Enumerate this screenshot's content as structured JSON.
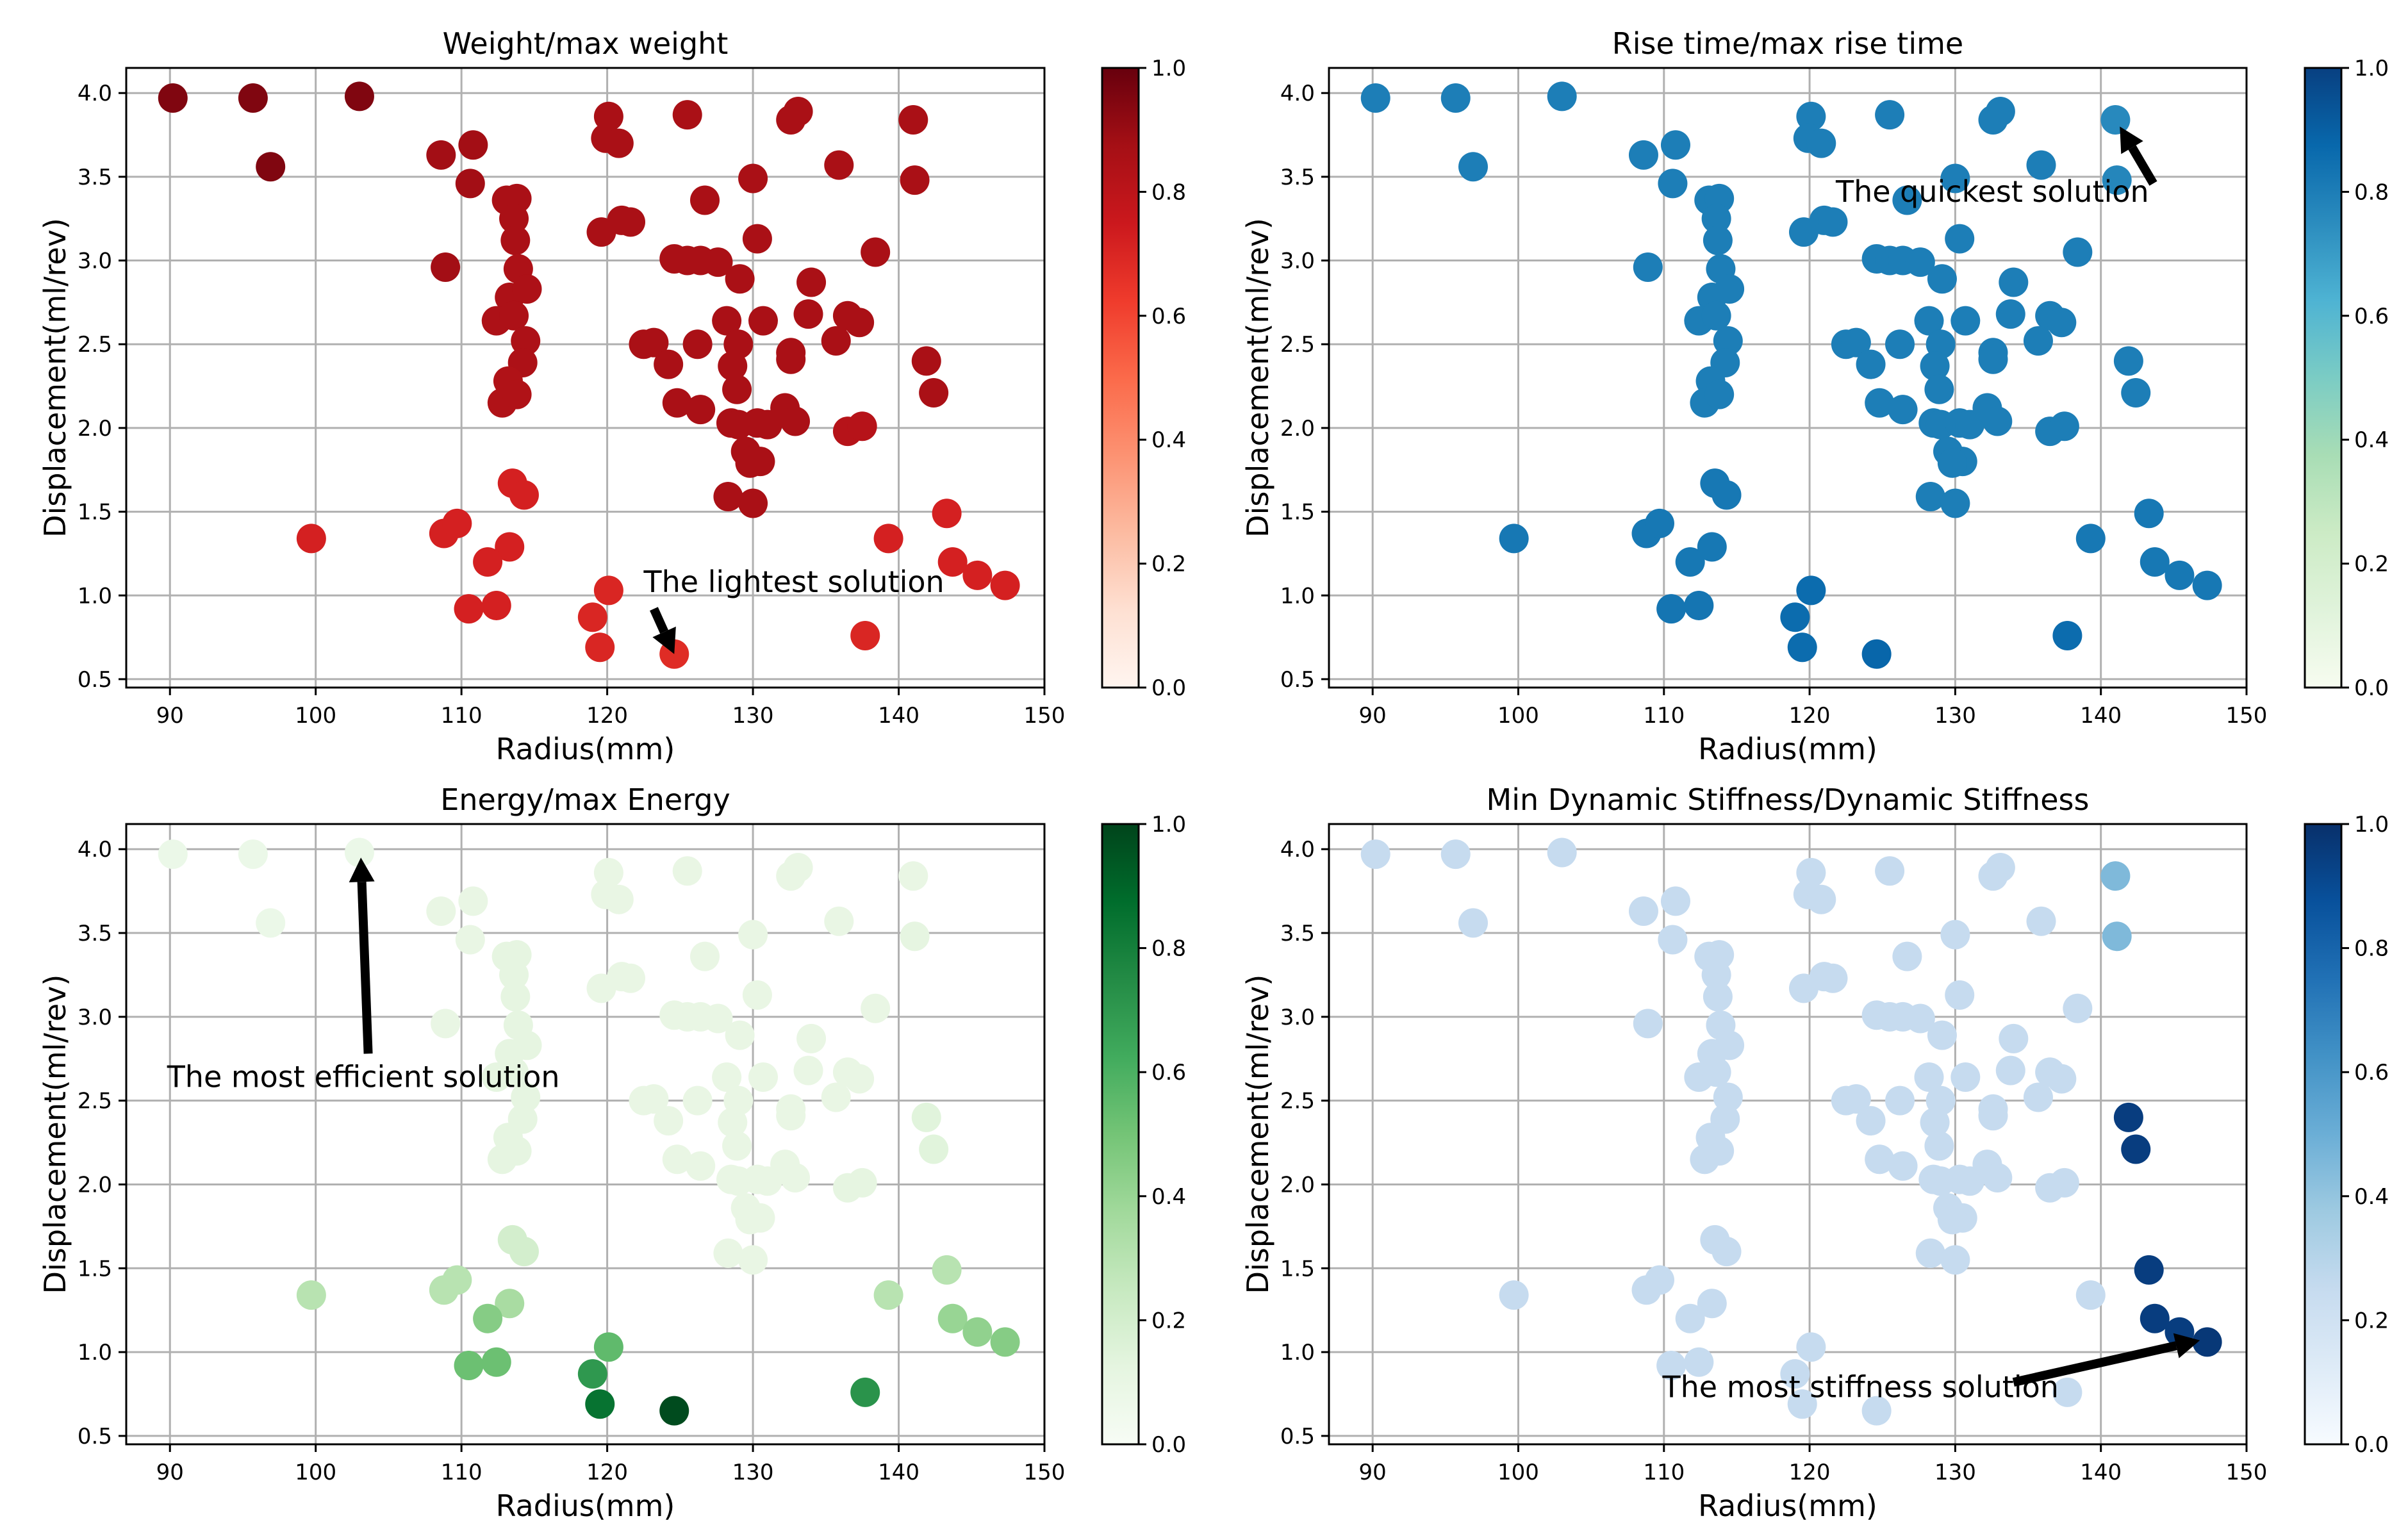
{
  "chart_data": {
    "type": "scatter",
    "shared": {
      "xlabel": "Radius(mm)",
      "ylabel": "Displacement(ml/rev)",
      "xlim": [
        87,
        150
      ],
      "ylim": [
        0.45,
        4.15
      ],
      "xticks": [
        90,
        100,
        110,
        120,
        130,
        140,
        150
      ],
      "yticks": [
        0.5,
        1.0,
        1.5,
        2.0,
        2.5,
        3.0,
        3.5,
        4.0
      ],
      "colorbar_ticks": [
        0.0,
        0.2,
        0.4,
        0.6,
        0.8,
        1.0
      ],
      "grid": true,
      "points": [
        {
          "x": 90.2,
          "y": 3.97
        },
        {
          "x": 95.7,
          "y": 3.97
        },
        {
          "x": 103,
          "y": 3.98
        },
        {
          "x": 96.9,
          "y": 3.56
        },
        {
          "x": 108.6,
          "y": 3.63
        },
        {
          "x": 110.8,
          "y": 3.69
        },
        {
          "x": 110.6,
          "y": 3.46
        },
        {
          "x": 108.9,
          "y": 2.96
        },
        {
          "x": 113.1,
          "y": 3.36
        },
        {
          "x": 113.8,
          "y": 3.37
        },
        {
          "x": 113.6,
          "y": 3.25
        },
        {
          "x": 113.7,
          "y": 3.12
        },
        {
          "x": 113.9,
          "y": 2.95
        },
        {
          "x": 113.3,
          "y": 2.78
        },
        {
          "x": 114.5,
          "y": 2.83
        },
        {
          "x": 112.4,
          "y": 2.64
        },
        {
          "x": 113.6,
          "y": 2.67
        },
        {
          "x": 114.4,
          "y": 2.52
        },
        {
          "x": 114.2,
          "y": 2.39
        },
        {
          "x": 113.2,
          "y": 2.28
        },
        {
          "x": 112.8,
          "y": 2.15
        },
        {
          "x": 113.8,
          "y": 2.2
        },
        {
          "x": 113.5,
          "y": 1.67
        },
        {
          "x": 114.3,
          "y": 1.6
        },
        {
          "x": 99.7,
          "y": 1.34
        },
        {
          "x": 108.8,
          "y": 1.37
        },
        {
          "x": 109.7,
          "y": 1.43
        },
        {
          "x": 113.3,
          "y": 1.29
        },
        {
          "x": 111.8,
          "y": 1.2
        },
        {
          "x": 110.5,
          "y": 0.92
        },
        {
          "x": 112.4,
          "y": 0.94
        },
        {
          "x": 120.1,
          "y": 3.86
        },
        {
          "x": 119.9,
          "y": 3.73
        },
        {
          "x": 120.8,
          "y": 3.7
        },
        {
          "x": 119.6,
          "y": 3.17
        },
        {
          "x": 121.0,
          "y": 3.24
        },
        {
          "x": 121.6,
          "y": 3.23
        },
        {
          "x": 125.5,
          "y": 3.87
        },
        {
          "x": 126.7,
          "y": 3.36
        },
        {
          "x": 124.6,
          "y": 3.01
        },
        {
          "x": 125.5,
          "y": 3.0
        },
        {
          "x": 126.4,
          "y": 3.0
        },
        {
          "x": 127.6,
          "y": 2.99
        },
        {
          "x": 129.1,
          "y": 2.89
        },
        {
          "x": 130.0,
          "y": 3.49
        },
        {
          "x": 130.3,
          "y": 3.13
        },
        {
          "x": 132.6,
          "y": 3.84
        },
        {
          "x": 133.1,
          "y": 3.89
        },
        {
          "x": 135.9,
          "y": 3.57
        },
        {
          "x": 138.4,
          "y": 3.05
        },
        {
          "x": 134.0,
          "y": 2.87
        },
        {
          "x": 133.8,
          "y": 2.68
        },
        {
          "x": 136.5,
          "y": 2.67
        },
        {
          "x": 137.3,
          "y": 2.63
        },
        {
          "x": 135.7,
          "y": 2.52
        },
        {
          "x": 132.6,
          "y": 2.45
        },
        {
          "x": 132.6,
          "y": 2.41
        },
        {
          "x": 130.7,
          "y": 2.64
        },
        {
          "x": 128.2,
          "y": 2.64
        },
        {
          "x": 129.0,
          "y": 2.5
        },
        {
          "x": 128.6,
          "y": 2.37
        },
        {
          "x": 128.9,
          "y": 2.23
        },
        {
          "x": 126.2,
          "y": 2.5
        },
        {
          "x": 122.5,
          "y": 2.5
        },
        {
          "x": 123.2,
          "y": 2.51
        },
        {
          "x": 124.2,
          "y": 2.38
        },
        {
          "x": 124.8,
          "y": 2.15
        },
        {
          "x": 126.4,
          "y": 2.11
        },
        {
          "x": 128.5,
          "y": 2.03
        },
        {
          "x": 129.0,
          "y": 2.02
        },
        {
          "x": 130.3,
          "y": 2.03
        },
        {
          "x": 131.0,
          "y": 2.02
        },
        {
          "x": 132.2,
          "y": 2.12
        },
        {
          "x": 132.9,
          "y": 2.04
        },
        {
          "x": 129.5,
          "y": 1.86
        },
        {
          "x": 130.5,
          "y": 1.8
        },
        {
          "x": 129.8,
          "y": 1.79
        },
        {
          "x": 128.3,
          "y": 1.59
        },
        {
          "x": 130.0,
          "y": 1.55
        },
        {
          "x": 136.5,
          "y": 1.98
        },
        {
          "x": 137.5,
          "y": 2.01
        },
        {
          "x": 141.9,
          "y": 2.4
        },
        {
          "x": 142.4,
          "y": 2.21
        },
        {
          "x": 141.0,
          "y": 3.84
        },
        {
          "x": 141.1,
          "y": 3.48
        },
        {
          "x": 143.3,
          "y": 1.49
        },
        {
          "x": 139.3,
          "y": 1.34
        },
        {
          "x": 143.7,
          "y": 1.2
        },
        {
          "x": 145.4,
          "y": 1.12
        },
        {
          "x": 147.3,
          "y": 1.06
        },
        {
          "x": 120.1,
          "y": 1.03
        },
        {
          "x": 119.0,
          "y": 0.87
        },
        {
          "x": 119.5,
          "y": 0.69
        },
        {
          "x": 124.6,
          "y": 0.65
        },
        {
          "x": 137.7,
          "y": 0.76
        }
      ]
    },
    "panels": [
      {
        "title": "Weight/max weight",
        "cmap": "Reds",
        "colorbar_range": [
          0.0,
          1.0
        ],
        "values": [
          0.95,
          0.95,
          0.95,
          0.95,
          0.88,
          0.88,
          0.88,
          0.88,
          0.86,
          0.86,
          0.86,
          0.86,
          0.85,
          0.85,
          0.85,
          0.85,
          0.85,
          0.85,
          0.85,
          0.84,
          0.84,
          0.84,
          0.72,
          0.72,
          0.72,
          0.72,
          0.72,
          0.72,
          0.72,
          0.72,
          0.72,
          0.86,
          0.86,
          0.86,
          0.86,
          0.86,
          0.86,
          0.86,
          0.86,
          0.86,
          0.86,
          0.86,
          0.86,
          0.86,
          0.86,
          0.86,
          0.86,
          0.86,
          0.86,
          0.86,
          0.86,
          0.86,
          0.86,
          0.86,
          0.86,
          0.86,
          0.86,
          0.86,
          0.86,
          0.86,
          0.86,
          0.86,
          0.86,
          0.86,
          0.86,
          0.86,
          0.86,
          0.86,
          0.86,
          0.86,
          0.86,
          0.86,
          0.86,
          0.86,
          0.86,
          0.86,
          0.86,
          0.86,
          0.86,
          0.82,
          0.82,
          0.86,
          0.86,
          0.86,
          0.86,
          0.72,
          0.72,
          0.72,
          0.72,
          0.72,
          0.7,
          0.7,
          0.7,
          0.68,
          0.7
        ],
        "annotation": {
          "text": "The lightest solution",
          "text_at": [
            122.5,
            1.02
          ],
          "arrow_from": [
            123.2,
            0.92
          ],
          "arrow_to": [
            124.6,
            0.65
          ]
        }
      },
      {
        "title": "Rise time/max rise time",
        "cmap": "GnBu",
        "colorbar_range": [
          0.0,
          1.0
        ],
        "values": [
          0.8,
          0.8,
          0.8,
          0.8,
          0.8,
          0.8,
          0.8,
          0.8,
          0.8,
          0.8,
          0.8,
          0.8,
          0.8,
          0.8,
          0.8,
          0.8,
          0.8,
          0.8,
          0.8,
          0.8,
          0.8,
          0.8,
          0.82,
          0.82,
          0.82,
          0.82,
          0.82,
          0.82,
          0.82,
          0.83,
          0.83,
          0.8,
          0.8,
          0.8,
          0.8,
          0.8,
          0.8,
          0.8,
          0.8,
          0.8,
          0.8,
          0.8,
          0.8,
          0.8,
          0.8,
          0.8,
          0.8,
          0.8,
          0.8,
          0.8,
          0.8,
          0.8,
          0.8,
          0.8,
          0.8,
          0.8,
          0.8,
          0.8,
          0.8,
          0.8,
          0.8,
          0.8,
          0.8,
          0.8,
          0.8,
          0.8,
          0.8,
          0.8,
          0.8,
          0.8,
          0.8,
          0.8,
          0.8,
          0.8,
          0.8,
          0.8,
          0.8,
          0.8,
          0.8,
          0.8,
          0.8,
          0.8,
          0.8,
          0.76,
          0.77,
          0.82,
          0.82,
          0.82,
          0.82,
          0.82,
          0.86,
          0.86,
          0.86,
          0.88,
          0.86
        ],
        "annotation": {
          "text": "The quickest solution",
          "text_at": [
            121.8,
            3.35
          ],
          "arrow_from": [
            143.6,
            3.46
          ],
          "arrow_to": [
            141.3,
            3.8
          ]
        }
      },
      {
        "title": "Energy/max Energy",
        "cmap": "Greens",
        "colorbar_range": [
          0.0,
          1.0
        ],
        "values": [
          0.08,
          0.08,
          0.08,
          0.08,
          0.1,
          0.1,
          0.1,
          0.1,
          0.12,
          0.12,
          0.12,
          0.12,
          0.12,
          0.12,
          0.12,
          0.12,
          0.12,
          0.12,
          0.12,
          0.12,
          0.12,
          0.12,
          0.2,
          0.2,
          0.3,
          0.3,
          0.3,
          0.35,
          0.45,
          0.52,
          0.52,
          0.1,
          0.1,
          0.1,
          0.1,
          0.1,
          0.1,
          0.1,
          0.1,
          0.1,
          0.1,
          0.1,
          0.1,
          0.1,
          0.1,
          0.1,
          0.1,
          0.1,
          0.1,
          0.1,
          0.1,
          0.1,
          0.1,
          0.1,
          0.1,
          0.1,
          0.1,
          0.1,
          0.1,
          0.1,
          0.1,
          0.1,
          0.1,
          0.1,
          0.1,
          0.1,
          0.1,
          0.1,
          0.1,
          0.1,
          0.1,
          0.1,
          0.1,
          0.1,
          0.1,
          0.1,
          0.1,
          0.1,
          0.1,
          0.12,
          0.12,
          0.14,
          0.14,
          0.1,
          0.12,
          0.3,
          0.3,
          0.4,
          0.42,
          0.45,
          0.55,
          0.7,
          0.85,
          0.98,
          0.72
        ],
        "annotation": {
          "text": "The most efficient solution",
          "text_at": [
            89.8,
            2.58
          ],
          "arrow_from": [
            103.6,
            2.78
          ],
          "arrow_to": [
            103.1,
            3.95
          ]
        }
      },
      {
        "title": "Min Dynamic Stiffness/Dynamic Stiffness",
        "cmap": "Blues",
        "colorbar_range": [
          0.0,
          1.0
        ],
        "values": [
          0.25,
          0.25,
          0.25,
          0.25,
          0.25,
          0.25,
          0.25,
          0.25,
          0.25,
          0.25,
          0.25,
          0.25,
          0.25,
          0.25,
          0.25,
          0.25,
          0.25,
          0.25,
          0.25,
          0.25,
          0.25,
          0.25,
          0.25,
          0.25,
          0.25,
          0.25,
          0.25,
          0.25,
          0.25,
          0.25,
          0.25,
          0.25,
          0.25,
          0.25,
          0.25,
          0.25,
          0.25,
          0.25,
          0.25,
          0.25,
          0.25,
          0.25,
          0.25,
          0.25,
          0.25,
          0.25,
          0.25,
          0.25,
          0.25,
          0.25,
          0.25,
          0.25,
          0.25,
          0.25,
          0.25,
          0.25,
          0.25,
          0.25,
          0.25,
          0.25,
          0.25,
          0.25,
          0.25,
          0.25,
          0.25,
          0.25,
          0.25,
          0.25,
          0.25,
          0.25,
          0.25,
          0.25,
          0.25,
          0.25,
          0.25,
          0.25,
          0.25,
          0.25,
          0.25,
          0.25,
          0.25,
          0.95,
          0.95,
          0.45,
          0.45,
          0.95,
          0.25,
          0.95,
          0.95,
          0.97,
          0.25,
          0.25,
          0.25,
          0.25,
          0.25
        ],
        "annotation": {
          "text": "The most stiffness solution",
          "text_at": [
            109.9,
            0.73
          ],
          "arrow_from": [
            134,
            0.82
          ],
          "arrow_to": [
            146.8,
            1.07
          ]
        }
      }
    ]
  }
}
